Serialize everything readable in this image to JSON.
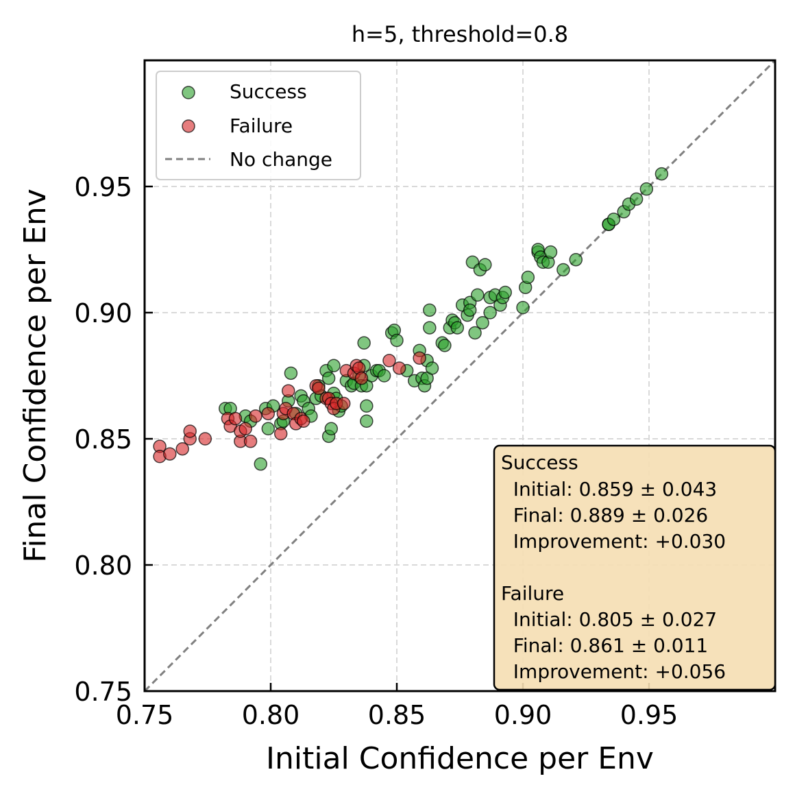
{
  "chart_data": {
    "type": "scatter",
    "title": "h=5, threshold=0.8",
    "xlabel": "Initial Confidence per Env",
    "ylabel": "Final Confidence per Env",
    "xlim": [
      0.75,
      1.0
    ],
    "ylim": [
      0.75,
      1.0
    ],
    "xticks": [
      0.75,
      0.8,
      0.85,
      0.9,
      0.95
    ],
    "yticks": [
      0.75,
      0.8,
      0.85,
      0.9,
      0.95
    ],
    "xtick_labels": [
      "0.75",
      "0.80",
      "0.85",
      "0.90",
      "0.95"
    ],
    "ytick_labels": [
      "0.75",
      "0.80",
      "0.85",
      "0.90",
      "0.95"
    ],
    "grid": true,
    "legend_position": "top-left",
    "legend": [
      {
        "label": "Success",
        "kind": "marker",
        "color": "#2ca02c"
      },
      {
        "label": "Failure",
        "kind": "marker",
        "color": "#d62728"
      },
      {
        "label": "No change",
        "kind": "dashed-line",
        "color": "#808080"
      }
    ],
    "reference_line": {
      "name": "No change",
      "from": [
        0.75,
        0.75
      ],
      "to": [
        1.0,
        1.0
      ],
      "style": "dashed",
      "color": "#808080"
    },
    "series": [
      {
        "name": "Success",
        "color": "#2ca02c",
        "points": [
          [
            0.782,
            0.862
          ],
          [
            0.784,
            0.862
          ],
          [
            0.79,
            0.859
          ],
          [
            0.792,
            0.857
          ],
          [
            0.796,
            0.84
          ],
          [
            0.798,
            0.862
          ],
          [
            0.799,
            0.854
          ],
          [
            0.801,
            0.863
          ],
          [
            0.804,
            0.856
          ],
          [
            0.805,
            0.857
          ],
          [
            0.807,
            0.865
          ],
          [
            0.808,
            0.876
          ],
          [
            0.81,
            0.86
          ],
          [
            0.812,
            0.867
          ],
          [
            0.813,
            0.865
          ],
          [
            0.815,
            0.862
          ],
          [
            0.816,
            0.859
          ],
          [
            0.818,
            0.866
          ],
          [
            0.819,
            0.871
          ],
          [
            0.82,
            0.867
          ],
          [
            0.822,
            0.877
          ],
          [
            0.823,
            0.874
          ],
          [
            0.823,
            0.851
          ],
          [
            0.824,
            0.854
          ],
          [
            0.825,
            0.868
          ],
          [
            0.825,
            0.879
          ],
          [
            0.826,
            0.866
          ],
          [
            0.827,
            0.861
          ],
          [
            0.828,
            0.863
          ],
          [
            0.83,
            0.873
          ],
          [
            0.832,
            0.871
          ],
          [
            0.833,
            0.872
          ],
          [
            0.835,
            0.875
          ],
          [
            0.836,
            0.871
          ],
          [
            0.837,
            0.879
          ],
          [
            0.837,
            0.888
          ],
          [
            0.838,
            0.857
          ],
          [
            0.838,
            0.871
          ],
          [
            0.838,
            0.863
          ],
          [
            0.84,
            0.875
          ],
          [
            0.842,
            0.877
          ],
          [
            0.843,
            0.877
          ],
          [
            0.845,
            0.875
          ],
          [
            0.848,
            0.892
          ],
          [
            0.849,
            0.893
          ],
          [
            0.85,
            0.889
          ],
          [
            0.854,
            0.877
          ],
          [
            0.857,
            0.873
          ],
          [
            0.859,
            0.885
          ],
          [
            0.86,
            0.874
          ],
          [
            0.861,
            0.871
          ],
          [
            0.862,
            0.874
          ],
          [
            0.862,
            0.881
          ],
          [
            0.863,
            0.894
          ],
          [
            0.863,
            0.901
          ],
          [
            0.864,
            0.878
          ],
          [
            0.868,
            0.888
          ],
          [
            0.869,
            0.887
          ],
          [
            0.871,
            0.894
          ],
          [
            0.872,
            0.897
          ],
          [
            0.873,
            0.896
          ],
          [
            0.874,
            0.894
          ],
          [
            0.876,
            0.903
          ],
          [
            0.878,
            0.899
          ],
          [
            0.879,
            0.904
          ],
          [
            0.879,
            0.901
          ],
          [
            0.88,
            0.92
          ],
          [
            0.881,
            0.892
          ],
          [
            0.882,
            0.907
          ],
          [
            0.883,
            0.917
          ],
          [
            0.884,
            0.896
          ],
          [
            0.885,
            0.919
          ],
          [
            0.887,
            0.9
          ],
          [
            0.887,
            0.906
          ],
          [
            0.889,
            0.907
          ],
          [
            0.891,
            0.903
          ],
          [
            0.892,
            0.906
          ],
          [
            0.893,
            0.908
          ],
          [
            0.9,
            0.902
          ],
          [
            0.901,
            0.91
          ],
          [
            0.902,
            0.914
          ],
          [
            0.906,
            0.924
          ],
          [
            0.906,
            0.925
          ],
          [
            0.907,
            0.922
          ],
          [
            0.908,
            0.92
          ],
          [
            0.91,
            0.92
          ],
          [
            0.911,
            0.924
          ],
          [
            0.916,
            0.917
          ],
          [
            0.921,
            0.921
          ],
          [
            0.934,
            0.935
          ],
          [
            0.934,
            0.935
          ],
          [
            0.936,
            0.937
          ],
          [
            0.94,
            0.94
          ],
          [
            0.942,
            0.943
          ],
          [
            0.945,
            0.945
          ],
          [
            0.949,
            0.949
          ],
          [
            0.955,
            0.955
          ]
        ]
      },
      {
        "name": "Failure",
        "color": "#d62728",
        "points": [
          [
            0.756,
            0.847
          ],
          [
            0.756,
            0.843
          ],
          [
            0.76,
            0.844
          ],
          [
            0.765,
            0.846
          ],
          [
            0.768,
            0.85
          ],
          [
            0.768,
            0.853
          ],
          [
            0.774,
            0.85
          ],
          [
            0.783,
            0.858
          ],
          [
            0.784,
            0.855
          ],
          [
            0.786,
            0.858
          ],
          [
            0.788,
            0.849
          ],
          [
            0.788,
            0.853
          ],
          [
            0.79,
            0.854
          ],
          [
            0.792,
            0.849
          ],
          [
            0.794,
            0.859
          ],
          [
            0.799,
            0.86
          ],
          [
            0.804,
            0.852
          ],
          [
            0.805,
            0.86
          ],
          [
            0.806,
            0.862
          ],
          [
            0.807,
            0.869
          ],
          [
            0.809,
            0.86
          ],
          [
            0.81,
            0.856
          ],
          [
            0.812,
            0.858
          ],
          [
            0.813,
            0.857
          ],
          [
            0.818,
            0.871
          ],
          [
            0.819,
            0.87
          ],
          [
            0.822,
            0.866
          ],
          [
            0.823,
            0.866
          ],
          [
            0.824,
            0.864
          ],
          [
            0.825,
            0.862
          ],
          [
            0.826,
            0.864
          ],
          [
            0.829,
            0.864
          ],
          [
            0.83,
            0.877
          ],
          [
            0.833,
            0.876
          ],
          [
            0.834,
            0.879
          ],
          [
            0.835,
            0.878
          ],
          [
            0.836,
            0.874
          ],
          [
            0.847,
            0.881
          ],
          [
            0.851,
            0.878
          ],
          [
            0.859,
            0.882
          ]
        ]
      }
    ],
    "stats_box": {
      "position": "bottom-right",
      "lines": [
        "Success",
        "  Initial: 0.859 ± 0.043",
        "  Final: 0.889 ± 0.026",
        "  Improvement: +0.030",
        "",
        "Failure",
        "  Initial: 0.805 ± 0.027",
        "  Final: 0.861 ± 0.011",
        "  Improvement: +0.056"
      ]
    }
  }
}
